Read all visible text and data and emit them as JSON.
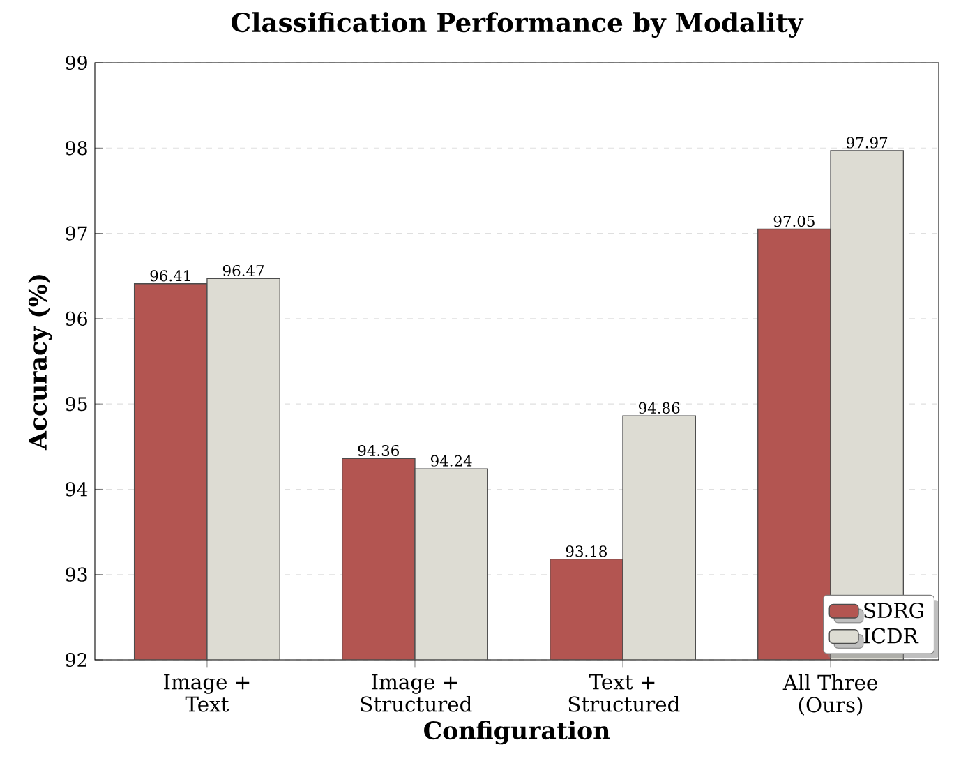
{
  "chart_data": {
    "type": "bar",
    "title": "Classification Performance by Modality",
    "xlabel": "Configuration",
    "ylabel": "Accuracy (%)",
    "categories": [
      "Image + Text",
      "Image + Structured",
      "Text + Structured",
      "All Three (Ours)"
    ],
    "series": [
      {
        "name": "SDRG",
        "color": "#b35551",
        "values": [
          96.41,
          94.36,
          93.18,
          97.05
        ]
      },
      {
        "name": "ICDR",
        "color": "#dddcd3",
        "values": [
          96.47,
          94.24,
          94.86,
          97.97
        ]
      }
    ],
    "ylim": [
      92,
      99
    ],
    "yticks": [
      92,
      93,
      94,
      95,
      96,
      97,
      98,
      99
    ],
    "grid": "y",
    "legend": "bottom right",
    "data_labels": true
  }
}
